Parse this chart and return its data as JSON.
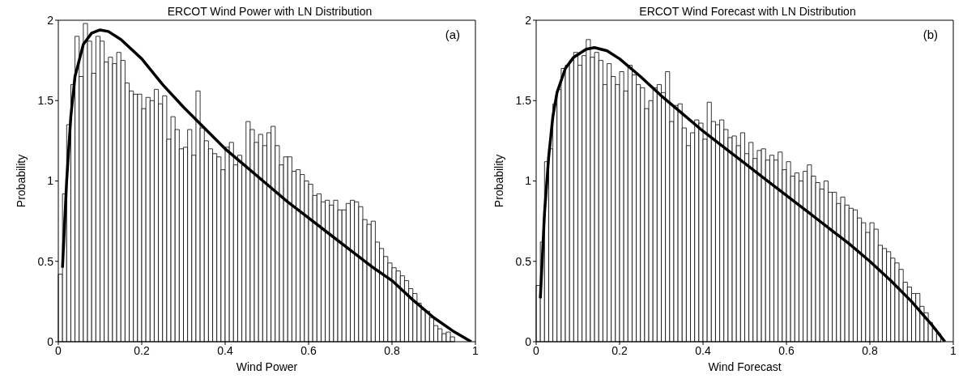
{
  "chart_data": [
    {
      "type": "histogram",
      "title": "ERCOT Wind Power with LN Distribution",
      "xlabel": "Wind Power",
      "ylabel": "Probability",
      "annotations": [
        "(a)"
      ],
      "xlim": [
        0,
        1
      ],
      "xticks": [
        0,
        0.2,
        0.4,
        0.6,
        0.8,
        1
      ],
      "ylim": [
        0,
        2
      ],
      "yticks": [
        0,
        0.5,
        1,
        1.5,
        2
      ],
      "series": [
        {
          "color": "#ffffff",
          "bins": [
            0,
            0.01,
            0.02,
            0.03,
            0.04,
            0.05,
            0.06,
            0.07,
            0.08,
            0.09,
            0.1,
            0.11,
            0.12,
            0.13,
            0.14,
            0.15,
            0.16,
            0.17,
            0.18,
            0.19,
            0.2,
            0.21,
            0.22,
            0.23,
            0.24,
            0.25,
            0.26,
            0.27,
            0.28,
            0.29,
            0.3,
            0.31,
            0.32,
            0.33,
            0.34,
            0.35,
            0.36,
            0.37,
            0.38,
            0.39,
            0.4,
            0.41,
            0.42,
            0.43,
            0.44,
            0.45,
            0.46,
            0.47,
            0.48,
            0.49,
            0.5,
            0.51,
            0.52,
            0.53,
            0.54,
            0.55,
            0.56,
            0.57,
            0.58,
            0.59,
            0.6,
            0.61,
            0.62,
            0.63,
            0.64,
            0.65,
            0.66,
            0.67,
            0.68,
            0.69,
            0.7,
            0.71,
            0.72,
            0.73,
            0.74,
            0.75,
            0.76,
            0.77,
            0.78,
            0.79,
            0.8,
            0.81,
            0.82,
            0.83,
            0.84,
            0.85,
            0.86,
            0.87,
            0.88,
            0.89,
            0.9,
            0.91,
            0.92,
            0.93,
            0.94,
            0.95
          ],
          "values": [
            0.42,
            0.92,
            1.35,
            1.6,
            1.9,
            1.65,
            1.98,
            1.87,
            1.67,
            1.9,
            1.87,
            1.74,
            1.77,
            1.73,
            1.8,
            1.75,
            1.61,
            1.56,
            1.54,
            1.54,
            1.45,
            1.52,
            1.5,
            1.57,
            1.48,
            1.53,
            1.26,
            1.4,
            1.32,
            1.2,
            1.21,
            1.32,
            1.16,
            1.56,
            1.33,
            1.25,
            1.2,
            1.17,
            1.15,
            1.07,
            1.21,
            1.24,
            1.1,
            1.16,
            1.1,
            1.37,
            1.32,
            1.24,
            1.29,
            1.22,
            1.3,
            1.34,
            1.22,
            1.1,
            1.15,
            1.15,
            1.06,
            1.07,
            1.04,
            1.0,
            0.98,
            0.91,
            0.92,
            0.87,
            0.88,
            0.85,
            0.88,
            0.82,
            0.82,
            0.86,
            0.88,
            0.87,
            0.84,
            0.76,
            0.73,
            0.75,
            0.62,
            0.58,
            0.53,
            0.49,
            0.46,
            0.44,
            0.41,
            0.38,
            0.33,
            0.3,
            0.24,
            0.2,
            0.19,
            0.15,
            0.1,
            0.08,
            0.05,
            0.06,
            0.03
          ]
        },
        {
          "type": "line",
          "color": "#000000",
          "x": [
            0.01,
            0.02,
            0.03,
            0.04,
            0.06,
            0.08,
            0.1,
            0.12,
            0.15,
            0.2,
            0.25,
            0.3,
            0.35,
            0.4,
            0.45,
            0.5,
            0.55,
            0.6,
            0.65,
            0.7,
            0.75,
            0.8,
            0.85,
            0.9,
            0.95,
            0.99
          ],
          "values": [
            0.46,
            1.0,
            1.4,
            1.65,
            1.85,
            1.92,
            1.94,
            1.93,
            1.88,
            1.76,
            1.6,
            1.46,
            1.33,
            1.2,
            1.09,
            0.98,
            0.87,
            0.77,
            0.67,
            0.57,
            0.47,
            0.38,
            0.26,
            0.15,
            0.06,
            0.0
          ]
        }
      ]
    },
    {
      "type": "histogram",
      "title": "ERCOT Wind Forecast with LN Distribution",
      "xlabel": "Wind Forecast",
      "ylabel": "Probability",
      "annotations": [
        "(b)"
      ],
      "xlim": [
        0,
        1
      ],
      "xticks": [
        0,
        0.2,
        0.4,
        0.6,
        0.8,
        1
      ],
      "ylim": [
        0,
        2
      ],
      "yticks": [
        0,
        0.5,
        1,
        1.5,
        2
      ],
      "series": [
        {
          "color": "#ffffff",
          "bins": [
            0,
            0.01,
            0.02,
            0.03,
            0.04,
            0.05,
            0.06,
            0.07,
            0.08,
            0.09,
            0.1,
            0.11,
            0.12,
            0.13,
            0.14,
            0.15,
            0.16,
            0.17,
            0.18,
            0.19,
            0.2,
            0.21,
            0.22,
            0.23,
            0.24,
            0.25,
            0.26,
            0.27,
            0.28,
            0.29,
            0.3,
            0.31,
            0.32,
            0.33,
            0.34,
            0.35,
            0.36,
            0.37,
            0.38,
            0.39,
            0.4,
            0.41,
            0.42,
            0.43,
            0.44,
            0.45,
            0.46,
            0.47,
            0.48,
            0.49,
            0.5,
            0.51,
            0.52,
            0.53,
            0.54,
            0.55,
            0.56,
            0.57,
            0.58,
            0.59,
            0.6,
            0.61,
            0.62,
            0.63,
            0.64,
            0.65,
            0.66,
            0.67,
            0.68,
            0.69,
            0.7,
            0.71,
            0.72,
            0.73,
            0.74,
            0.75,
            0.76,
            0.77,
            0.78,
            0.79,
            0.8,
            0.81,
            0.82,
            0.83,
            0.84,
            0.85,
            0.86,
            0.87,
            0.88,
            0.89,
            0.9,
            0.91,
            0.92,
            0.93,
            0.94,
            0.95,
            0.96,
            0.97
          ],
          "values": [
            0.35,
            0.62,
            1.12,
            1.2,
            1.48,
            1.57,
            1.7,
            1.72,
            1.75,
            1.8,
            1.72,
            1.78,
            1.88,
            1.77,
            1.8,
            1.75,
            1.6,
            1.73,
            1.65,
            1.6,
            1.68,
            1.56,
            1.72,
            1.66,
            1.6,
            1.58,
            1.45,
            1.5,
            1.58,
            1.6,
            1.55,
            1.68,
            1.37,
            1.47,
            1.48,
            1.33,
            1.22,
            1.3,
            1.38,
            1.36,
            1.26,
            1.49,
            1.37,
            1.35,
            1.38,
            1.32,
            1.27,
            1.28,
            1.22,
            1.3,
            1.17,
            1.24,
            1.14,
            1.19,
            1.2,
            1.13,
            1.16,
            1.13,
            1.18,
            1.07,
            1.12,
            1.03,
            1.05,
            1.0,
            1.06,
            1.1,
            1.03,
            0.99,
            0.95,
            1.0,
            0.93,
            0.93,
            0.86,
            0.9,
            0.85,
            0.83,
            0.82,
            0.77,
            0.74,
            0.68,
            0.74,
            0.7,
            0.6,
            0.58,
            0.56,
            0.52,
            0.49,
            0.45,
            0.37,
            0.34,
            0.3,
            0.3,
            0.22,
            0.18,
            0.12,
            0.08,
            0.05
          ]
        },
        {
          "type": "line",
          "color": "#000000",
          "x": [
            0.01,
            0.02,
            0.03,
            0.04,
            0.05,
            0.07,
            0.09,
            0.12,
            0.14,
            0.17,
            0.2,
            0.25,
            0.3,
            0.35,
            0.4,
            0.45,
            0.5,
            0.55,
            0.6,
            0.65,
            0.7,
            0.75,
            0.8,
            0.85,
            0.9,
            0.95,
            0.98
          ],
          "values": [
            0.27,
            0.8,
            1.15,
            1.4,
            1.55,
            1.7,
            1.77,
            1.82,
            1.83,
            1.81,
            1.76,
            1.65,
            1.53,
            1.42,
            1.31,
            1.21,
            1.11,
            1.01,
            0.91,
            0.81,
            0.71,
            0.61,
            0.5,
            0.38,
            0.25,
            0.1,
            0.0
          ]
        }
      ]
    }
  ]
}
